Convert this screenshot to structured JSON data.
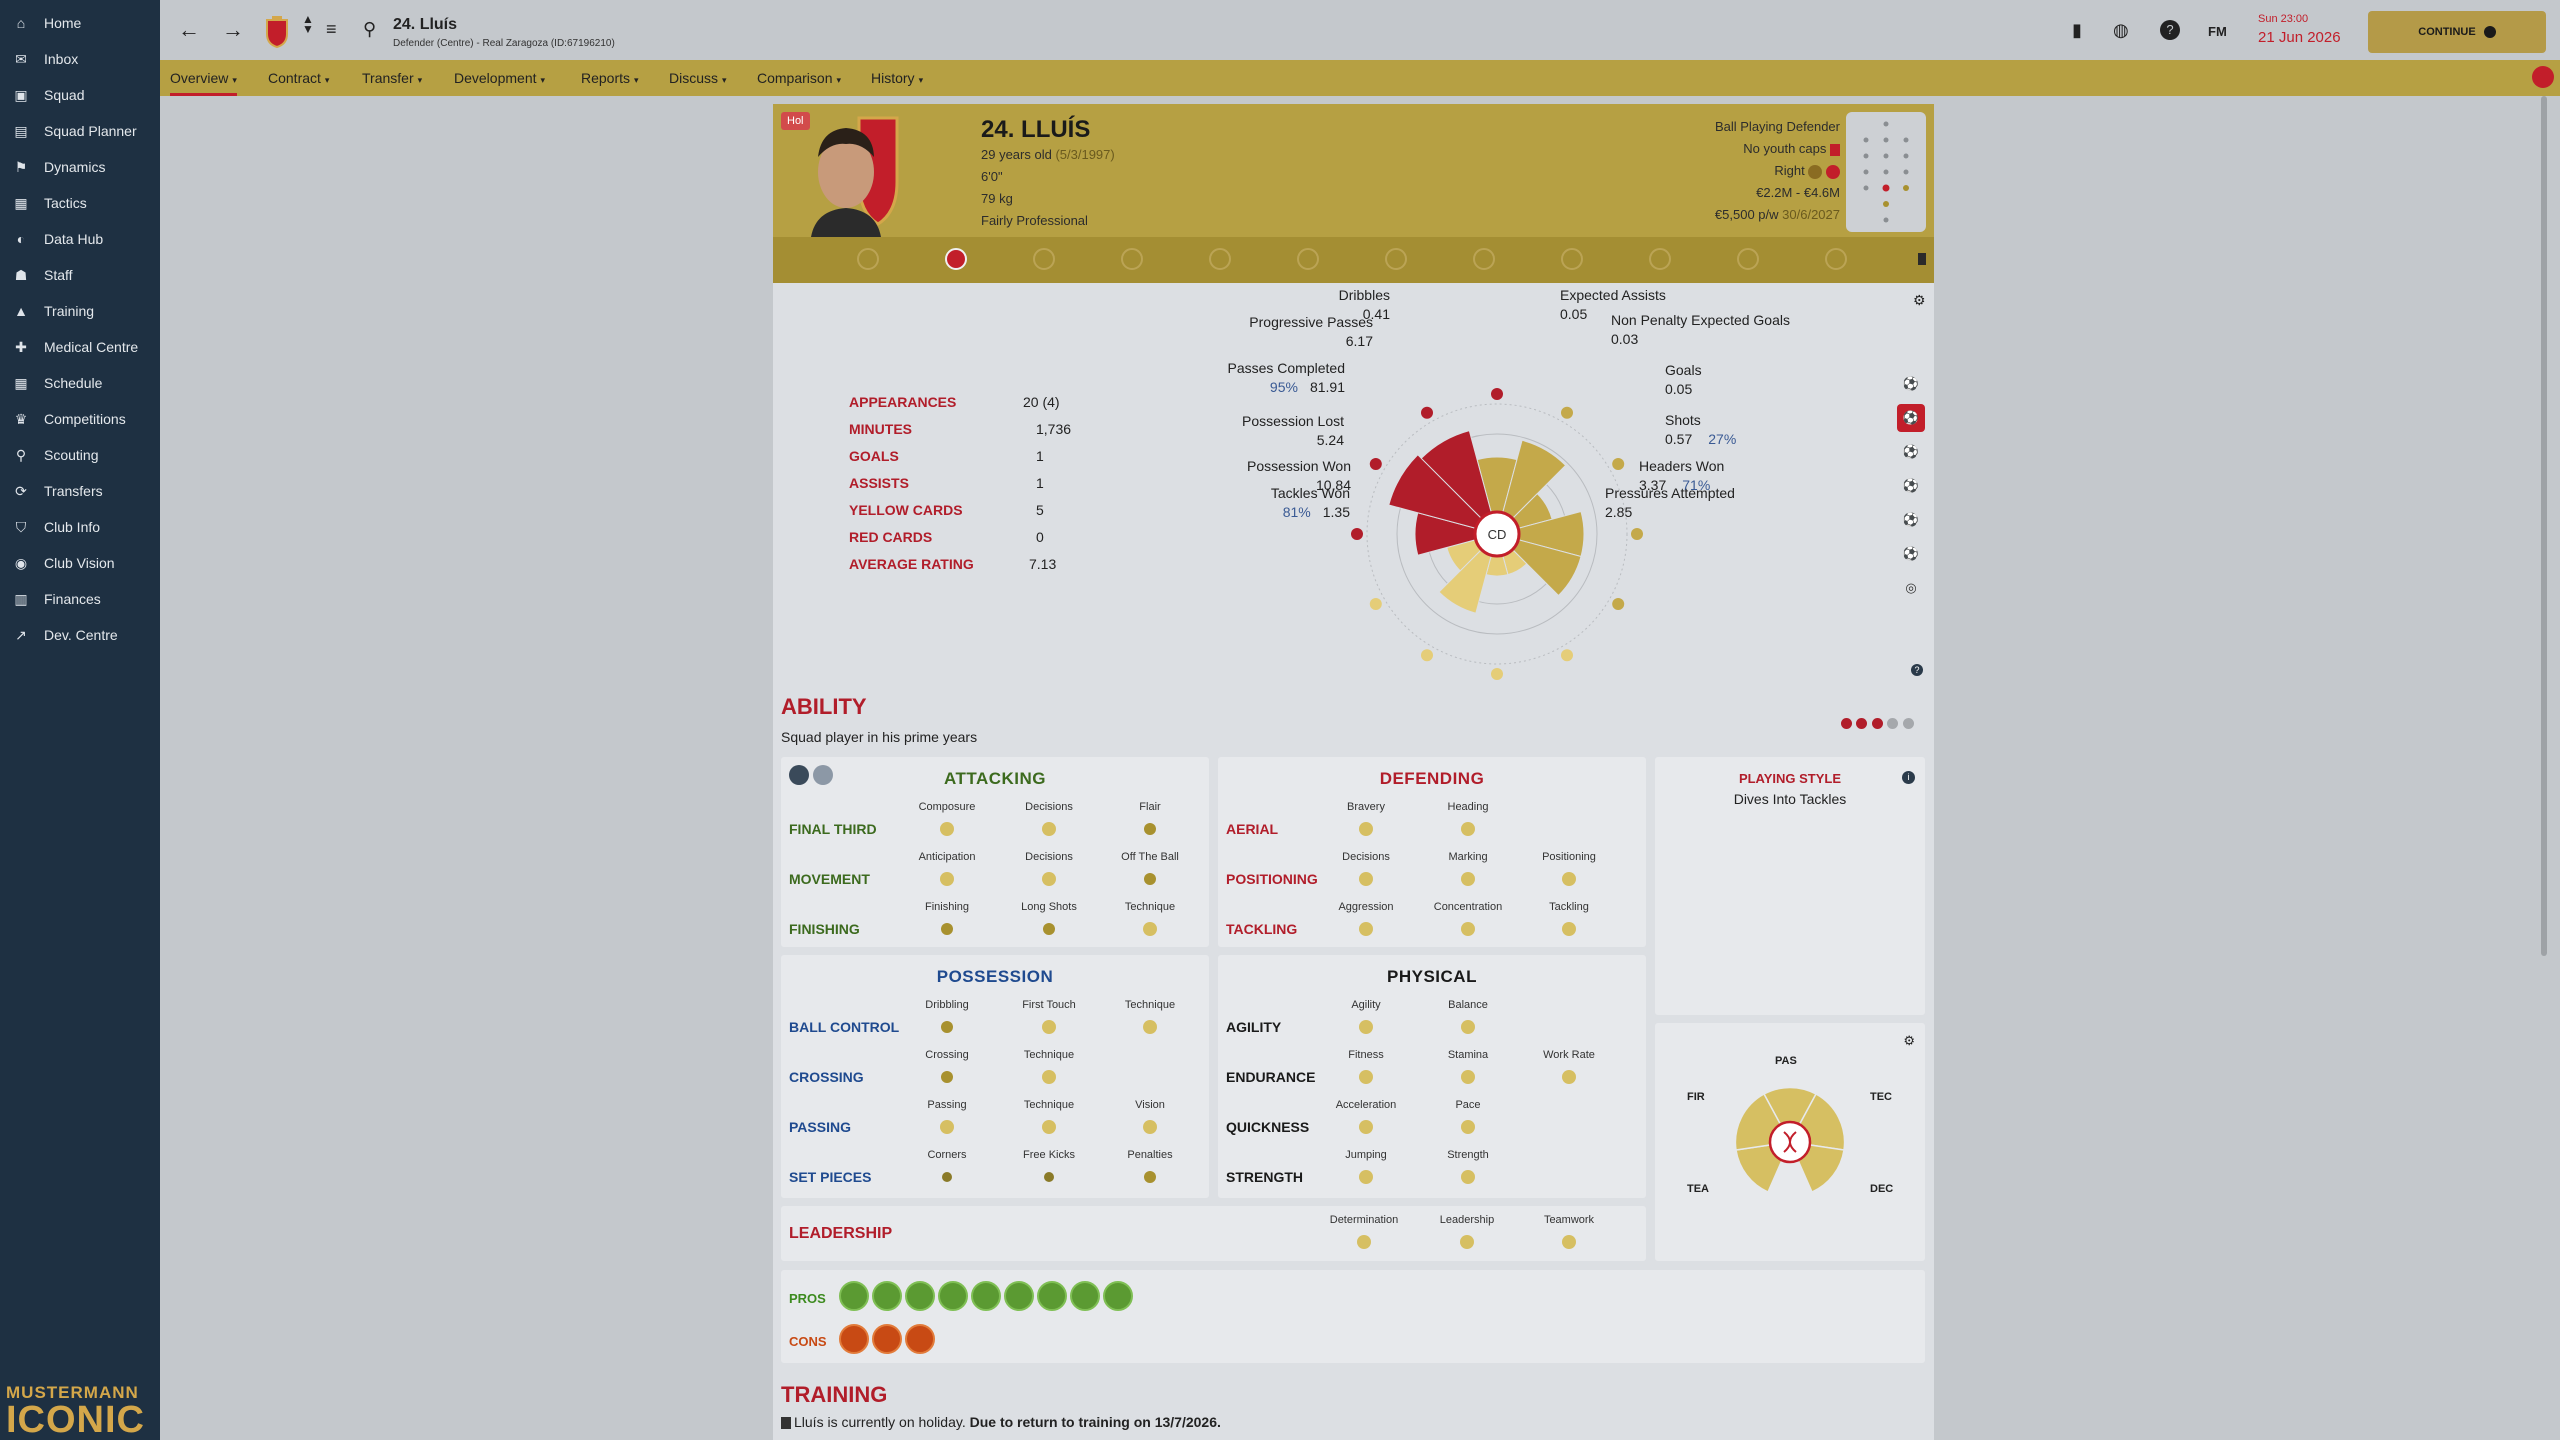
{
  "sidebar": {
    "items": [
      {
        "label": "Home",
        "icon": "home-icon"
      },
      {
        "label": "Inbox",
        "icon": "inbox-icon"
      },
      {
        "label": "Squad",
        "icon": "shirt-icon"
      },
      {
        "label": "Squad Planner",
        "icon": "clipboard-icon"
      },
      {
        "label": "Dynamics",
        "icon": "dynamics-icon"
      },
      {
        "label": "Tactics",
        "icon": "tactics-icon"
      },
      {
        "label": "Data Hub",
        "icon": "data-hub-icon"
      },
      {
        "label": "Staff",
        "icon": "staff-icon"
      },
      {
        "label": "Training",
        "icon": "training-icon"
      },
      {
        "label": "Medical Centre",
        "icon": "medical-icon"
      },
      {
        "label": "Schedule",
        "icon": "calendar-icon"
      },
      {
        "label": "Competitions",
        "icon": "trophy-icon"
      },
      {
        "label": "Scouting",
        "icon": "search-icon"
      },
      {
        "label": "Transfers",
        "icon": "transfers-icon"
      },
      {
        "label": "Club Info",
        "icon": "shield-icon"
      },
      {
        "label": "Club Vision",
        "icon": "vision-icon"
      },
      {
        "label": "Finances",
        "icon": "finances-icon"
      },
      {
        "label": "Dev. Centre",
        "icon": "dev-centre-icon"
      }
    ],
    "brand_top": "MUSTERMANN",
    "brand_bottom": "ICONIC"
  },
  "topbar": {
    "title": "24. Lluís",
    "subtitle": "Defender (Centre) - Real Zaragoza (ID:67196210)",
    "fm_label": "FM",
    "date_time": "Sun 23:00",
    "date": "21 Jun 2026",
    "continue_label": "CONTINUE"
  },
  "tabs": [
    {
      "label": "Overview"
    },
    {
      "label": "Contract"
    },
    {
      "label": "Transfer"
    },
    {
      "label": "Development"
    },
    {
      "label": "Reports"
    },
    {
      "label": "Discuss"
    },
    {
      "label": "Comparison"
    },
    {
      "label": "History"
    }
  ],
  "player": {
    "badge": "Hol",
    "name": "24. LLUÍS",
    "age": "29 years old",
    "dob": "(5/3/1997)",
    "height": "6'0\"",
    "weight": "79 kg",
    "personality": "Fairly Professional",
    "role": "Ball Playing Defender",
    "caps": "No youth caps",
    "foot": "Right",
    "value": "€2.2M - €4.6M",
    "wage": "€5,500 p/w",
    "contract_end": "30/6/2027"
  },
  "stats": [
    {
      "label": "APPEARANCES",
      "value": "20 (4)"
    },
    {
      "label": "MINUTES",
      "value": "1,736"
    },
    {
      "label": "GOALS",
      "value": "1"
    },
    {
      "label": "ASSISTS",
      "value": "1"
    },
    {
      "label": "YELLOW CARDS",
      "value": "5"
    },
    {
      "label": "RED CARDS",
      "value": "0"
    },
    {
      "label": "AVERAGE RATING",
      "value": "7.13"
    }
  ],
  "radar": {
    "center": "CD",
    "metrics": [
      {
        "label": "Dribbles",
        "value": "0.41",
        "pct": "",
        "level": 0.55
      },
      {
        "label": "Expected Assists",
        "value": "0.05",
        "pct": "",
        "level": 0.75
      },
      {
        "label": "Non Penalty Expected Goals",
        "value": "0.03",
        "pct": "",
        "level": 0.35
      },
      {
        "label": "Goals",
        "value": "0.05",
        "pct": "",
        "level": 0.65
      },
      {
        "label": "Shots",
        "value": "0.57",
        "pct": "27%",
        "level": 0.65
      },
      {
        "label": "Headers Won",
        "value": "3.37",
        "pct": "71%",
        "level": 0.2
      },
      {
        "label": "Pressures Attempted",
        "value": "2.85",
        "pct": "",
        "level": 0.2
      },
      {
        "label": "Tackles Won",
        "value": "1.35",
        "pct": "81%",
        "level": 0.6
      },
      {
        "label": "Possession Won",
        "value": "10.84",
        "pct": "",
        "level": 0.3
      },
      {
        "label": "Possession Lost",
        "value": "5.24",
        "pct": "",
        "level": 0.6
      },
      {
        "label": "Passes Completed",
        "value": "81.91",
        "pct": "95%",
        "level": 0.9
      },
      {
        "label": "Progressive Passes",
        "value": "6.17",
        "pct": "",
        "level": 0.85
      }
    ]
  },
  "ability": {
    "title": "ABILITY",
    "subtitle": "Squad player in his prime years"
  },
  "attacking": {
    "title": "ATTACKING",
    "rows": [
      {
        "label": "FINAL THIRD",
        "attrs": [
          "Composure",
          "Decisions",
          "Flair"
        ]
      },
      {
        "label": "MOVEMENT",
        "attrs": [
          "Anticipation",
          "Decisions",
          "Off The Ball"
        ]
      },
      {
        "label": "FINISHING",
        "attrs": [
          "Finishing",
          "Long Shots",
          "Technique"
        ]
      }
    ]
  },
  "defending": {
    "title": "DEFENDING",
    "rows": [
      {
        "label": "AERIAL",
        "attrs": [
          "Bravery",
          "Heading"
        ]
      },
      {
        "label": "POSITIONING",
        "attrs": [
          "Decisions",
          "Marking",
          "Positioning"
        ]
      },
      {
        "label": "TACKLING",
        "attrs": [
          "Aggression",
          "Concentration",
          "Tackling"
        ]
      }
    ]
  },
  "possession": {
    "title": "POSSESSION",
    "rows": [
      {
        "label": "BALL CONTROL",
        "attrs": [
          "Dribbling",
          "First Touch",
          "Technique"
        ]
      },
      {
        "label": "CROSSING",
        "attrs": [
          "Crossing",
          "Technique"
        ]
      },
      {
        "label": "PASSING",
        "attrs": [
          "Passing",
          "Technique",
          "Vision"
        ]
      },
      {
        "label": "SET PIECES",
        "attrs": [
          "Corners",
          "Free Kicks",
          "Penalties"
        ]
      }
    ]
  },
  "physical": {
    "title": "PHYSICAL",
    "rows": [
      {
        "label": "AGILITY",
        "attrs": [
          "Agility",
          "Balance"
        ]
      },
      {
        "label": "ENDURANCE",
        "attrs": [
          "Fitness",
          "Stamina",
          "Work Rate"
        ]
      },
      {
        "label": "QUICKNESS",
        "attrs": [
          "Acceleration",
          "Pace"
        ]
      },
      {
        "label": "STRENGTH",
        "attrs": [
          "Jumping",
          "Strength"
        ]
      }
    ]
  },
  "leadership": {
    "title": "LEADERSHIP",
    "attrs": [
      "Determination",
      "Leadership",
      "Teamwork"
    ]
  },
  "playing_style": {
    "title": "PLAYING STYLE",
    "value": "Dives Into Tackles"
  },
  "dna": {
    "pas": "PAS",
    "fir": "FIR",
    "tec": "TEC",
    "tea": "TEA",
    "dec": "DEC"
  },
  "pros_label": "PROS",
  "cons_label": "CONS",
  "training": {
    "title": "TRAINING",
    "text_plain": "Lluís is currently on holiday.",
    "text_bold": "Due to return to training on 13/7/2026."
  },
  "colors": {
    "accent_red": "#b11d2a",
    "gold": "#b6a043",
    "sidebar": "#1e3042",
    "attacking": "#3c6a1e",
    "possession": "#1f4a8f"
  }
}
